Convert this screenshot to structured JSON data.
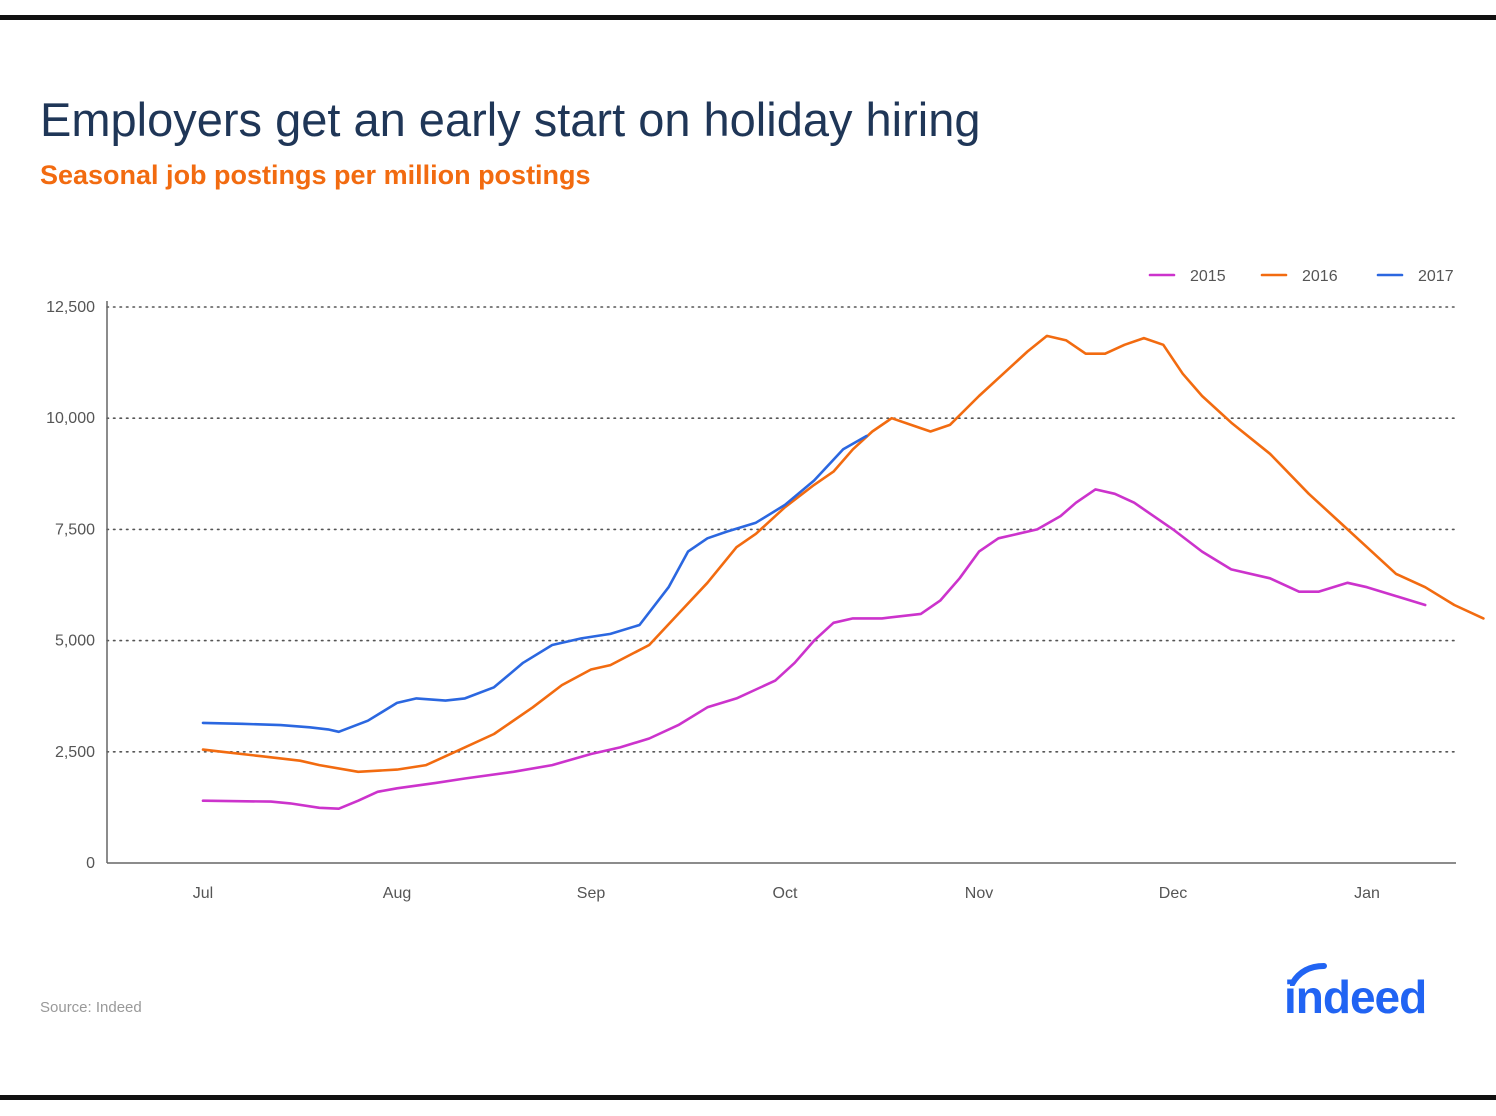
{
  "title": "Employers get an early start on holiday hiring",
  "subtitle": "Seasonal job postings per million postings",
  "source": "Source: Indeed",
  "logo_text": "indeed",
  "colors": {
    "title": "#1f3657",
    "subtitle": "#f26b10",
    "s2015": "#cc33cc",
    "s2016": "#f26b10",
    "s2017": "#2b67e0",
    "logo": "#2164f3"
  },
  "chart_data": {
    "type": "line",
    "title": "Employers get an early start on holiday hiring",
    "subtitle": "Seasonal job postings per million postings",
    "xlabel": "",
    "ylabel": "",
    "x_unit": "month (0 = Jul 1, 6 = Jan 1)",
    "x_ticks": [
      {
        "value": 0,
        "label": "Jul"
      },
      {
        "value": 1,
        "label": "Aug"
      },
      {
        "value": 2,
        "label": "Sep"
      },
      {
        "value": 3,
        "label": "Oct"
      },
      {
        "value": 4,
        "label": "Nov"
      },
      {
        "value": 5,
        "label": "Dec"
      },
      {
        "value": 6,
        "label": "Jan"
      }
    ],
    "y_ticks": [
      {
        "value": 0,
        "label": "0"
      },
      {
        "value": 2500,
        "label": "2,500"
      },
      {
        "value": 5000,
        "label": "5,000"
      },
      {
        "value": 7500,
        "label": "7,500"
      },
      {
        "value": 10000,
        "label": "10,000"
      },
      {
        "value": 12500,
        "label": "12,500"
      }
    ],
    "xlim": [
      -0.5,
      6.45
    ],
    "ylim": [
      0,
      12500
    ],
    "grid": "horizontal dotted",
    "legend_position": "top-right",
    "series": [
      {
        "name": "2015",
        "color": "#cc33cc",
        "points": [
          [
            0,
            1400
          ],
          [
            0.35,
            1380
          ],
          [
            0.45,
            1340
          ],
          [
            0.6,
            1240
          ],
          [
            0.7,
            1220
          ],
          [
            0.8,
            1400
          ],
          [
            0.9,
            1600
          ],
          [
            1.0,
            1680
          ],
          [
            1.2,
            1800
          ],
          [
            1.35,
            1900
          ],
          [
            1.6,
            2050
          ],
          [
            1.8,
            2200
          ],
          [
            2.0,
            2450
          ],
          [
            2.15,
            2600
          ],
          [
            2.3,
            2800
          ],
          [
            2.45,
            3100
          ],
          [
            2.6,
            3500
          ],
          [
            2.75,
            3700
          ],
          [
            2.85,
            3900
          ],
          [
            2.95,
            4100
          ],
          [
            3.05,
            4500
          ],
          [
            3.15,
            5000
          ],
          [
            3.25,
            5400
          ],
          [
            3.35,
            5500
          ],
          [
            3.5,
            5500
          ],
          [
            3.7,
            5600
          ],
          [
            3.8,
            5900
          ],
          [
            3.9,
            6400
          ],
          [
            4.0,
            7000
          ],
          [
            4.1,
            7300
          ],
          [
            4.3,
            7500
          ],
          [
            4.42,
            7800
          ],
          [
            4.5,
            8100
          ],
          [
            4.6,
            8400
          ],
          [
            4.7,
            8300
          ],
          [
            4.8,
            8100
          ],
          [
            4.9,
            7800
          ],
          [
            5.0,
            7500
          ],
          [
            5.15,
            7000
          ],
          [
            5.3,
            6600
          ],
          [
            5.5,
            6400
          ],
          [
            5.65,
            6100
          ],
          [
            5.75,
            6100
          ],
          [
            5.9,
            6300
          ],
          [
            6.0,
            6200
          ],
          [
            6.15,
            6000
          ],
          [
            6.3,
            5800
          ]
        ]
      },
      {
        "name": "2016",
        "color": "#f26b10",
        "points": [
          [
            0,
            2550
          ],
          [
            0.1,
            2500
          ],
          [
            0.3,
            2400
          ],
          [
            0.5,
            2300
          ],
          [
            0.6,
            2200
          ],
          [
            0.8,
            2050
          ],
          [
            1.0,
            2100
          ],
          [
            1.15,
            2200
          ],
          [
            1.3,
            2500
          ],
          [
            1.5,
            2900
          ],
          [
            1.7,
            3500
          ],
          [
            1.85,
            4000
          ],
          [
            2.0,
            4350
          ],
          [
            2.1,
            4450
          ],
          [
            2.3,
            4900
          ],
          [
            2.45,
            5600
          ],
          [
            2.6,
            6300
          ],
          [
            2.75,
            7100
          ],
          [
            2.85,
            7400
          ],
          [
            3.0,
            8000
          ],
          [
            3.15,
            8500
          ],
          [
            3.25,
            8800
          ],
          [
            3.35,
            9300
          ],
          [
            3.45,
            9700
          ],
          [
            3.55,
            10000
          ],
          [
            3.65,
            9850
          ],
          [
            3.75,
            9700
          ],
          [
            3.85,
            9850
          ],
          [
            4.0,
            10500
          ],
          [
            4.15,
            11100
          ],
          [
            4.25,
            11500
          ],
          [
            4.35,
            11850
          ],
          [
            4.45,
            11750
          ],
          [
            4.55,
            11450
          ],
          [
            4.65,
            11450
          ],
          [
            4.75,
            11650
          ],
          [
            4.85,
            11800
          ],
          [
            4.95,
            11650
          ],
          [
            5.05,
            11000
          ],
          [
            5.15,
            10500
          ],
          [
            5.3,
            9900
          ],
          [
            5.5,
            9200
          ],
          [
            5.7,
            8300
          ],
          [
            5.85,
            7700
          ],
          [
            6.0,
            7100
          ],
          [
            6.15,
            6500
          ],
          [
            6.3,
            6200
          ],
          [
            6.45,
            5800
          ],
          [
            6.6,
            5500
          ]
        ]
      },
      {
        "name": "2017",
        "color": "#2b67e0",
        "points": [
          [
            0,
            3150
          ],
          [
            0.2,
            3130
          ],
          [
            0.4,
            3100
          ],
          [
            0.55,
            3050
          ],
          [
            0.65,
            3000
          ],
          [
            0.7,
            2950
          ],
          [
            0.85,
            3200
          ],
          [
            1.0,
            3600
          ],
          [
            1.1,
            3700
          ],
          [
            1.25,
            3650
          ],
          [
            1.35,
            3700
          ],
          [
            1.5,
            3950
          ],
          [
            1.65,
            4500
          ],
          [
            1.8,
            4900
          ],
          [
            1.95,
            5050
          ],
          [
            2.1,
            5150
          ],
          [
            2.25,
            5350
          ],
          [
            2.4,
            6200
          ],
          [
            2.5,
            7000
          ],
          [
            2.6,
            7300
          ],
          [
            2.7,
            7450
          ],
          [
            2.85,
            7650
          ],
          [
            3.0,
            8050
          ],
          [
            3.15,
            8600
          ],
          [
            3.3,
            9300
          ],
          [
            3.42,
            9600
          ]
        ]
      }
    ]
  }
}
